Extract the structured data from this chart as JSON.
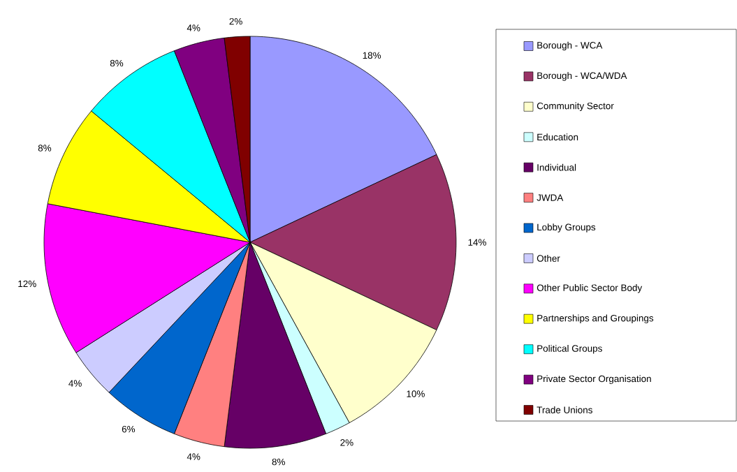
{
  "chart_data": {
    "type": "pie",
    "categories": [
      "Borough - WCA",
      "Borough - WCA/WDA",
      "Community Sector",
      "Education",
      "Individual",
      "JWDA",
      "Lobby Groups",
      "Other",
      "Other Public Sector Body",
      "Partnerships and Groupings",
      "Political Groups",
      "Private Sector Organisation",
      "Trade Unions"
    ],
    "values": [
      18,
      14,
      10,
      2,
      8,
      4,
      6,
      4,
      12,
      8,
      8,
      4,
      2
    ],
    "colors": [
      "#9999ff",
      "#993366",
      "#ffffcc",
      "#ccffff",
      "#660066",
      "#ff8080",
      "#0066cc",
      "#ccccff",
      "#ff00ff",
      "#ffff00",
      "#00ffff",
      "#800080",
      "#800000"
    ],
    "value_labels": [
      "18%",
      "14%",
      "10%",
      "2%",
      "8%",
      "4%",
      "6%",
      "4%",
      "12%",
      "8%",
      "8%",
      "4%",
      "2%"
    ],
    "legend": "right"
  }
}
